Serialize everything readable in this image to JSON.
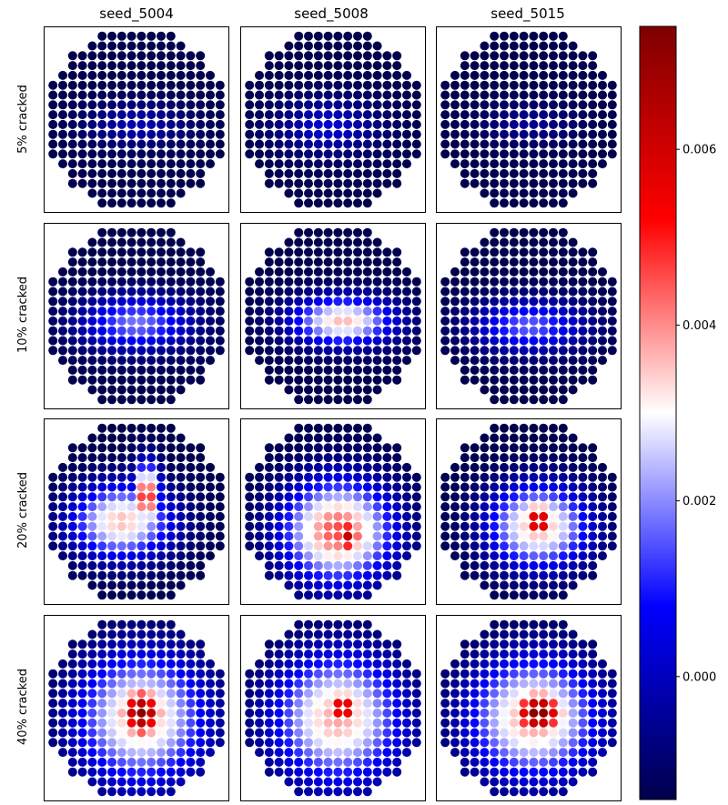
{
  "chart_data": {
    "type": "heatmap",
    "columns": [
      "seed_5004",
      "seed_5008",
      "seed_5015"
    ],
    "rows": [
      "5% cracked",
      "10% cracked",
      "20% cracked",
      "40% cracked"
    ],
    "grid": {
      "diameter": 18
    },
    "colormap": "seismic",
    "colorbar": {
      "vmin": -0.0014,
      "vmax": 0.0074,
      "ticks": [
        0.0,
        0.002,
        0.004,
        0.006
      ],
      "tick_labels": [
        "0.000",
        "0.002",
        "0.004",
        "0.006"
      ]
    },
    "panels": [
      [
        {
          "background": -0.0014,
          "hotspots": [
            {
              "cx": 8.5,
              "cy": 9.0,
              "rx": 5.5,
              "ry": 2.4,
              "peak": -0.0002
            }
          ]
        },
        {
          "background": -0.0014,
          "hotspots": [
            {
              "cx": 8.0,
              "cy": 9.2,
              "rx": 5.5,
              "ry": 3.0,
              "peak": 0.0002
            }
          ]
        },
        {
          "background": -0.0014,
          "hotspots": [
            {
              "cx": 8.5,
              "cy": 9.0,
              "rx": 5.0,
              "ry": 2.2,
              "peak": -0.0006
            }
          ]
        }
      ],
      [
        {
          "background": -0.0014,
          "hotspots": [
            {
              "cx": 8.5,
              "cy": 9.2,
              "rx": 6.0,
              "ry": 3.0,
              "peak": 0.0018
            }
          ]
        },
        {
          "background": -0.0014,
          "hotspots": [
            {
              "cx": 9.5,
              "cy": 9.0,
              "rx": 5.5,
              "ry": 2.6,
              "peak": 0.0036
            }
          ]
        },
        {
          "background": -0.0014,
          "hotspots": [
            {
              "cx": 8.5,
              "cy": 9.5,
              "rx": 6.0,
              "ry": 2.8,
              "peak": 0.0016
            }
          ]
        }
      ],
      [
        {
          "background": -0.0014,
          "hotspots": [
            {
              "cx": 7.0,
              "cy": 9.5,
              "rx": 5.5,
              "ry": 4.0,
              "peak": 0.0036
            },
            {
              "cx": 9.5,
              "cy": 7.0,
              "rx": 1.5,
              "ry": 3.5,
              "peak": 0.0055
            }
          ]
        },
        {
          "background": -0.0014,
          "hotspots": [
            {
              "cx": 9.0,
              "cy": 10.5,
              "rx": 6.0,
              "ry": 5.5,
              "peak": 0.0046
            },
            {
              "cx": 10.0,
              "cy": 11.0,
              "rx": 2.0,
              "ry": 2.5,
              "peak": 0.0062
            }
          ]
        },
        {
          "background": -0.0014,
          "hotspots": [
            {
              "cx": 9.5,
              "cy": 10.0,
              "rx": 5.5,
              "ry": 4.5,
              "peak": 0.0038
            },
            {
              "cx": 9.5,
              "cy": 9.5,
              "rx": 2.0,
              "ry": 2.5,
              "peak": 0.0066
            }
          ]
        }
      ],
      [
        {
          "background": -0.0014,
          "hotspots": [
            {
              "cx": 9.0,
              "cy": 9.5,
              "rx": 7.0,
              "ry": 7.0,
              "peak": 0.0038
            },
            {
              "cx": 9.0,
              "cy": 9.0,
              "rx": 3.0,
              "ry": 3.5,
              "peak": 0.0072
            }
          ]
        },
        {
          "background": -0.0014,
          "hotspots": [
            {
              "cx": 9.0,
              "cy": 9.5,
              "rx": 7.0,
              "ry": 7.0,
              "peak": 0.0038
            },
            {
              "cx": 9.5,
              "cy": 8.5,
              "rx": 2.5,
              "ry": 2.5,
              "peak": 0.0062
            }
          ]
        },
        {
          "background": -0.0014,
          "hotspots": [
            {
              "cx": 9.0,
              "cy": 9.5,
              "rx": 7.0,
              "ry": 6.5,
              "peak": 0.004
            },
            {
              "cx": 9.5,
              "cy": 9.0,
              "rx": 3.5,
              "ry": 3.0,
              "peak": 0.0074
            }
          ]
        }
      ]
    ]
  }
}
